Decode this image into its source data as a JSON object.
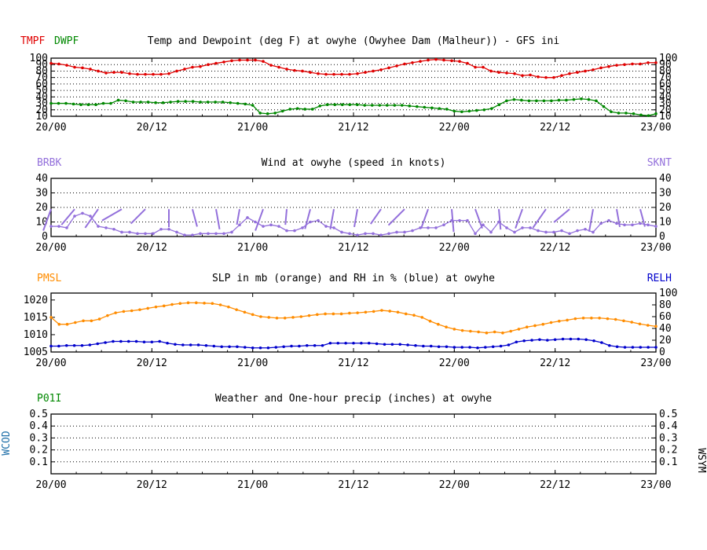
{
  "colors": {
    "temp": "#e00000",
    "dewp": "#008800",
    "wind": "#9370db",
    "slp": "#ff8c00",
    "rh": "#0000cc",
    "precip": "#008800",
    "wcod": "#1e6fa8",
    "black": "#000000"
  },
  "chart_data": [
    {
      "id": "temp",
      "type": "line",
      "title": "Temp and Dewpoint (deg F) at owyhe (Owyhee Dam (Malheur)) - GFS ini",
      "left_labels": [
        "TMPF",
        "DWPF"
      ],
      "x_ticks": [
        "20/00",
        "20/12",
        "21/00",
        "21/12",
        "22/00",
        "22/12",
        "23/00"
      ],
      "x_range_hours": [
        0,
        72
      ],
      "y_range": [
        10,
        100
      ],
      "y_ticks": [
        "10",
        "20",
        "30",
        "40",
        "50",
        "60",
        "70",
        "80",
        "90",
        "100"
      ],
      "series": [
        {
          "name": "TMPF",
          "values": [
            92,
            91,
            89,
            86,
            85,
            83,
            80,
            77,
            78,
            78,
            76,
            75,
            75,
            75,
            75,
            76,
            80,
            83,
            86,
            87,
            90,
            92,
            94,
            96,
            97,
            97,
            97,
            95,
            89,
            86,
            83,
            81,
            80,
            78,
            76,
            75,
            75,
            75,
            75,
            76,
            78,
            80,
            82,
            85,
            88,
            91,
            93,
            95,
            97,
            98,
            97,
            96,
            95,
            92,
            86,
            86,
            80,
            78,
            77,
            76,
            73,
            74,
            71,
            70,
            70,
            73,
            76,
            78,
            80,
            82,
            85,
            87,
            89,
            90,
            91,
            91,
            93,
            93
          ]
        },
        {
          "name": "DWPF",
          "values": [
            30,
            30,
            30,
            29,
            28,
            28,
            28,
            30,
            30,
            35,
            34,
            32,
            32,
            32,
            31,
            31,
            32,
            33,
            33,
            33,
            32,
            32,
            32,
            32,
            31,
            30,
            29,
            27,
            15,
            14,
            15,
            18,
            21,
            22,
            21,
            21,
            26,
            28,
            28,
            28,
            28,
            28,
            27,
            27,
            27,
            27,
            27,
            27,
            26,
            25,
            24,
            23,
            22,
            21,
            18,
            17,
            18,
            19,
            20,
            22,
            28,
            34,
            36,
            35,
            34,
            34,
            34,
            34,
            35,
            35,
            36,
            37,
            36,
            34,
            25,
            17,
            15,
            15,
            14,
            12,
            11,
            14
          ]
        }
      ]
    },
    {
      "id": "wind",
      "type": "line",
      "title": "Wind at  owyhe (speed in knots)",
      "left_label": "BRBK",
      "right_label": "SKNT",
      "x_ticks": [
        "20/00",
        "20/12",
        "21/00",
        "21/12",
        "22/00",
        "22/12",
        "23/00"
      ],
      "x_range_hours": [
        0,
        72
      ],
      "y_range": [
        0,
        40
      ],
      "y_ticks": [
        "0",
        "10",
        "20",
        "30",
        "40"
      ],
      "series": [
        {
          "name": "SKNT",
          "values": [
            7,
            7,
            6,
            14,
            16,
            14,
            7,
            6,
            5,
            3,
            3,
            2,
            2,
            2,
            5,
            5,
            3,
            1,
            1,
            2,
            2,
            2,
            2,
            3,
            8,
            13,
            10,
            7,
            8,
            7,
            4,
            4,
            6,
            10,
            11,
            7,
            6,
            3,
            2,
            1,
            2,
            2,
            1,
            2,
            3,
            3,
            4,
            6,
            6,
            6,
            8,
            11,
            11,
            11,
            2,
            8,
            3,
            10,
            6,
            3,
            6,
            6,
            4,
            3,
            3,
            4,
            2,
            4,
            5,
            3,
            9,
            11,
            9,
            8,
            8,
            9,
            8,
            7
          ]
        },
        {
          "name": "BRBK_dir_deg",
          "values": [
            200,
            210,
            215,
            220,
            225,
            220,
            215,
            230,
            235,
            240,
            235,
            240,
            225,
            200,
            190,
            180,
            175,
            170,
            165,
            160,
            165,
            170,
            175,
            180,
            190,
            195,
            200,
            200,
            195,
            190,
            185,
            180,
            190,
            195,
            200,
            195,
            190,
            185,
            180,
            190,
            200,
            210,
            215,
            215,
            220,
            225,
            230,
            220,
            200,
            190,
            180,
            175,
            170,
            165,
            160,
            165,
            170,
            175,
            180,
            190,
            200,
            210,
            215,
            215,
            220,
            225,
            230,
            220,
            200,
            190,
            180,
            175,
            170,
            165,
            160,
            165,
            170,
            175
          ]
        }
      ]
    },
    {
      "id": "slp",
      "type": "line",
      "title": "SLP in mb (orange) and RH in % (blue) at  owyhe",
      "left_label": "PMSL",
      "right_label": "RELH",
      "x_ticks": [
        "20/00",
        "20/12",
        "21/00",
        "21/12",
        "22/00",
        "22/12",
        "23/00"
      ],
      "x_range_hours": [
        0,
        72
      ],
      "y_range_left": [
        1005,
        1022
      ],
      "y_ticks_left": [
        "1005",
        "1010",
        "1015",
        "1020"
      ],
      "y_range_right": [
        0,
        100
      ],
      "y_ticks_right": [
        "0",
        "20",
        "40",
        "60",
        "80",
        "100"
      ],
      "series": [
        {
          "name": "PMSL",
          "values": [
            1015,
            1013,
            1013,
            1013.5,
            1014,
            1014,
            1014.5,
            1015.5,
            1016.3,
            1016.7,
            1016.9,
            1017.2,
            1017.6,
            1018,
            1018.3,
            1018.7,
            1019,
            1019.2,
            1019.2,
            1019.1,
            1019,
            1018.6,
            1018,
            1017.2,
            1016.5,
            1015.8,
            1015.2,
            1015,
            1014.8,
            1014.8,
            1015,
            1015.2,
            1015.5,
            1015.8,
            1016,
            1016,
            1016,
            1016.2,
            1016.3,
            1016.5,
            1016.7,
            1017,
            1016.8,
            1016.5,
            1016,
            1015.6,
            1015,
            1013.9,
            1013,
            1012.2,
            1011.6,
            1011.2,
            1011,
            1010.8,
            1010.5,
            1010.8,
            1010.5,
            1011,
            1011.6,
            1012.2,
            1012.6,
            1013,
            1013.5,
            1013.9,
            1014.2,
            1014.6,
            1014.8,
            1014.8,
            1014.8,
            1014.6,
            1014.4,
            1014,
            1013.6,
            1013.1,
            1012.7,
            1012.4
          ]
        },
        {
          "name": "RELH",
          "values": [
            10,
            10,
            11,
            11,
            11,
            12,
            14,
            16,
            18,
            18,
            18,
            18,
            17,
            17,
            18,
            15,
            13,
            12,
            12,
            12,
            11,
            10,
            9,
            9,
            9,
            8,
            7,
            7,
            7,
            8,
            9,
            10,
            10,
            11,
            11,
            11,
            15,
            15,
            15,
            15,
            15,
            15,
            14,
            13,
            13,
            13,
            12,
            11,
            10,
            10,
            9,
            9,
            8,
            8,
            8,
            7,
            8,
            9,
            10,
            12,
            17,
            19,
            20,
            21,
            20,
            21,
            22,
            22,
            22,
            21,
            19,
            16,
            11,
            9,
            8,
            8,
            8,
            8,
            8
          ]
        }
      ]
    },
    {
      "id": "precip",
      "type": "line",
      "title": "Weather and One-hour precip (inches) at  owyhe",
      "left_label": "P01I",
      "side_left": "WCOD",
      "side_right": "WSYM",
      "x_ticks": [
        "20/00",
        "20/12",
        "21/00",
        "21/12",
        "22/00",
        "22/12",
        "23/00"
      ],
      "x_range_hours": [
        0,
        72
      ],
      "y_range": [
        0,
        0.5
      ],
      "y_ticks": [
        "0.1",
        "0.2",
        "0.3",
        "0.4",
        "0.5"
      ],
      "series": []
    }
  ]
}
